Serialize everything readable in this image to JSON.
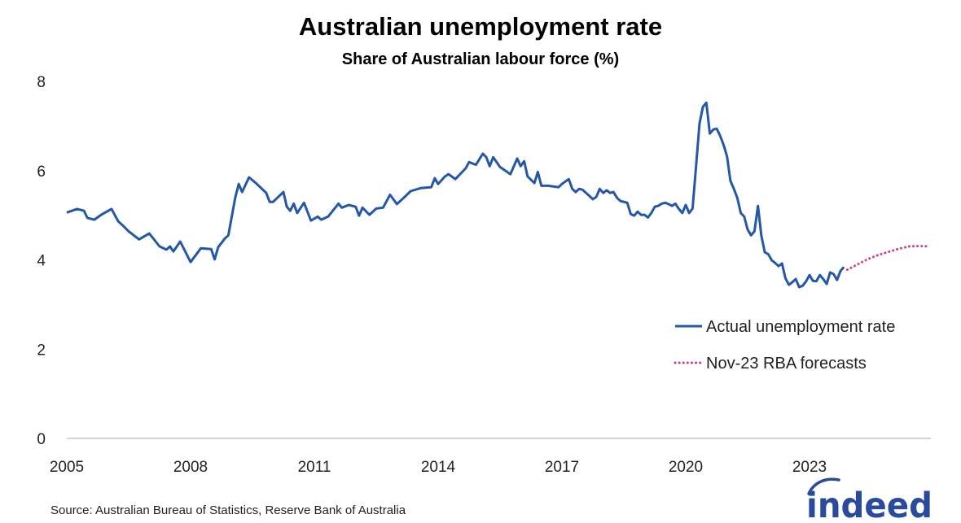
{
  "chart_data": {
    "type": "line",
    "title": "Australian unemployment rate",
    "subtitle": "Share of Australian labour force (%)",
    "xlabel": "",
    "ylabel": "",
    "ylim": [
      0,
      8
    ],
    "xlim": [
      "2005-01",
      "2026-01"
    ],
    "y_ticks": [
      "0",
      "2",
      "4",
      "6",
      "8"
    ],
    "x_ticks": [
      "2005",
      "2008",
      "2011",
      "2014",
      "2017",
      "2020",
      "2023"
    ],
    "grid": false,
    "legend_position": "right",
    "series": [
      {
        "name": "Actual unemployment rate",
        "color": "#2457a8",
        "style": "solid",
        "points": [
          [
            "2005-01",
            5.06
          ],
          [
            "2005-04",
            5.14
          ],
          [
            "2005-06",
            5.1
          ],
          [
            "2005-07",
            4.94
          ],
          [
            "2005-09",
            4.9
          ],
          [
            "2005-11",
            5.01
          ],
          [
            "2006-02",
            5.14
          ],
          [
            "2006-04",
            4.86
          ],
          [
            "2006-05",
            4.79
          ],
          [
            "2006-07",
            4.64
          ],
          [
            "2006-10",
            4.46
          ],
          [
            "2007-01",
            4.59
          ],
          [
            "2007-04",
            4.3
          ],
          [
            "2007-06",
            4.23
          ],
          [
            "2007-07",
            4.3
          ],
          [
            "2007-08",
            4.19
          ],
          [
            "2007-10",
            4.41
          ],
          [
            "2008-01",
            3.95
          ],
          [
            "2008-04",
            4.26
          ],
          [
            "2008-07",
            4.24
          ],
          [
            "2008-08",
            4.01
          ],
          [
            "2008-09",
            4.28
          ],
          [
            "2008-11",
            4.48
          ],
          [
            "2008-12",
            4.55
          ],
          [
            "2009-02",
            5.4
          ],
          [
            "2009-03",
            5.7
          ],
          [
            "2009-04",
            5.52
          ],
          [
            "2009-06",
            5.85
          ],
          [
            "2009-08",
            5.72
          ],
          [
            "2009-11",
            5.5
          ],
          [
            "2009-12",
            5.3
          ],
          [
            "2010-01",
            5.3
          ],
          [
            "2010-04",
            5.52
          ],
          [
            "2010-05",
            5.19
          ],
          [
            "2010-06",
            5.1
          ],
          [
            "2010-07",
            5.26
          ],
          [
            "2010-08",
            5.05
          ],
          [
            "2010-10",
            5.28
          ],
          [
            "2010-12",
            4.88
          ],
          [
            "2011-02",
            4.97
          ],
          [
            "2011-03",
            4.9
          ],
          [
            "2011-05",
            4.97
          ],
          [
            "2011-08",
            5.26
          ],
          [
            "2011-09",
            5.17
          ],
          [
            "2011-11",
            5.23
          ],
          [
            "2012-01",
            5.19
          ],
          [
            "2012-02",
            4.99
          ],
          [
            "2012-03",
            5.17
          ],
          [
            "2012-05",
            5.01
          ],
          [
            "2012-07",
            5.15
          ],
          [
            "2012-09",
            5.17
          ],
          [
            "2012-11",
            5.46
          ],
          [
            "2013-01",
            5.25
          ],
          [
            "2013-03",
            5.39
          ],
          [
            "2013-05",
            5.54
          ],
          [
            "2013-08",
            5.61
          ],
          [
            "2013-11",
            5.63
          ],
          [
            "2013-12",
            5.83
          ],
          [
            "2014-01",
            5.7
          ],
          [
            "2014-03",
            5.87
          ],
          [
            "2014-04",
            5.92
          ],
          [
            "2014-06",
            5.81
          ],
          [
            "2014-09",
            6.05
          ],
          [
            "2014-10",
            6.19
          ],
          [
            "2014-12",
            6.13
          ],
          [
            "2015-02",
            6.38
          ],
          [
            "2015-03",
            6.3
          ],
          [
            "2015-04",
            6.1
          ],
          [
            "2015-05",
            6.3
          ],
          [
            "2015-07",
            6.08
          ],
          [
            "2015-10",
            5.92
          ],
          [
            "2015-12",
            6.27
          ],
          [
            "2016-01",
            6.1
          ],
          [
            "2016-02",
            6.21
          ],
          [
            "2016-03",
            5.87
          ],
          [
            "2016-05",
            5.72
          ],
          [
            "2016-06",
            5.97
          ],
          [
            "2016-07",
            5.66
          ],
          [
            "2016-09",
            5.66
          ],
          [
            "2016-12",
            5.63
          ],
          [
            "2017-01",
            5.7
          ],
          [
            "2017-03",
            5.81
          ],
          [
            "2017-04",
            5.59
          ],
          [
            "2017-05",
            5.52
          ],
          [
            "2017-06",
            5.59
          ],
          [
            "2017-07",
            5.57
          ],
          [
            "2017-08",
            5.5
          ],
          [
            "2017-09",
            5.43
          ],
          [
            "2017-10",
            5.36
          ],
          [
            "2017-11",
            5.41
          ],
          [
            "2017-12",
            5.59
          ],
          [
            "2018-01",
            5.5
          ],
          [
            "2018-02",
            5.56
          ],
          [
            "2018-03",
            5.5
          ],
          [
            "2018-04",
            5.52
          ],
          [
            "2018-05",
            5.39
          ],
          [
            "2018-06",
            5.32
          ],
          [
            "2018-08",
            5.28
          ],
          [
            "2018-09",
            5.03
          ],
          [
            "2018-10",
            4.99
          ],
          [
            "2018-11",
            5.08
          ],
          [
            "2018-12",
            5.01
          ],
          [
            "2019-01",
            5.01
          ],
          [
            "2019-02",
            4.95
          ],
          [
            "2019-03",
            5.05
          ],
          [
            "2019-04",
            5.19
          ],
          [
            "2019-05",
            5.21
          ],
          [
            "2019-06",
            5.26
          ],
          [
            "2019-07",
            5.28
          ],
          [
            "2019-08",
            5.25
          ],
          [
            "2019-09",
            5.21
          ],
          [
            "2019-10",
            5.26
          ],
          [
            "2019-11",
            5.14
          ],
          [
            "2019-12",
            5.05
          ],
          [
            "2020-01",
            5.23
          ],
          [
            "2020-02",
            5.05
          ],
          [
            "2020-03",
            5.15
          ],
          [
            "2020-04",
            6.1
          ],
          [
            "2020-05",
            7.05
          ],
          [
            "2020-06",
            7.43
          ],
          [
            "2020-07",
            7.52
          ],
          [
            "2020-08",
            6.83
          ],
          [
            "2020-09",
            6.92
          ],
          [
            "2020-10",
            6.94
          ],
          [
            "2020-11",
            6.78
          ],
          [
            "2020-12",
            6.58
          ],
          [
            "2021-01",
            6.32
          ],
          [
            "2021-02",
            5.77
          ],
          [
            "2021-03",
            5.59
          ],
          [
            "2021-04",
            5.39
          ],
          [
            "2021-05",
            5.05
          ],
          [
            "2021-06",
            4.97
          ],
          [
            "2021-07",
            4.68
          ],
          [
            "2021-08",
            4.55
          ],
          [
            "2021-09",
            4.64
          ],
          [
            "2021-10",
            5.21
          ],
          [
            "2021-11",
            4.54
          ],
          [
            "2021-12",
            4.17
          ],
          [
            "2022-01",
            4.13
          ],
          [
            "2022-02",
            3.99
          ],
          [
            "2022-03",
            3.93
          ],
          [
            "2022-04",
            3.86
          ],
          [
            "2022-05",
            3.92
          ],
          [
            "2022-06",
            3.59
          ],
          [
            "2022-07",
            3.44
          ],
          [
            "2022-08",
            3.5
          ],
          [
            "2022-09",
            3.57
          ],
          [
            "2022-10",
            3.39
          ],
          [
            "2022-11",
            3.42
          ],
          [
            "2022-12",
            3.52
          ],
          [
            "2023-01",
            3.66
          ],
          [
            "2023-02",
            3.53
          ],
          [
            "2023-03",
            3.52
          ],
          [
            "2023-04",
            3.66
          ],
          [
            "2023-05",
            3.57
          ],
          [
            "2023-06",
            3.46
          ],
          [
            "2023-07",
            3.72
          ],
          [
            "2023-08",
            3.68
          ],
          [
            "2023-09",
            3.55
          ],
          [
            "2023-10",
            3.75
          ],
          [
            "2023-11",
            3.84
          ]
        ]
      },
      {
        "name": "Nov-23 RBA forecasts",
        "color": "#d03f8c",
        "style": "dotted",
        "points": [
          [
            "2023-12",
            3.78
          ],
          [
            "2024-03",
            3.9
          ],
          [
            "2024-06",
            4.02
          ],
          [
            "2024-09",
            4.11
          ],
          [
            "2024-12",
            4.18
          ],
          [
            "2025-03",
            4.25
          ],
          [
            "2025-06",
            4.3
          ],
          [
            "2025-09",
            4.31
          ],
          [
            "2025-12",
            4.3
          ]
        ]
      }
    ]
  },
  "source": "Source: Australian Bureau of Statistics, Reserve Bank of Australia",
  "logo": {
    "text": "indeed",
    "color": "#2a4b9b"
  }
}
